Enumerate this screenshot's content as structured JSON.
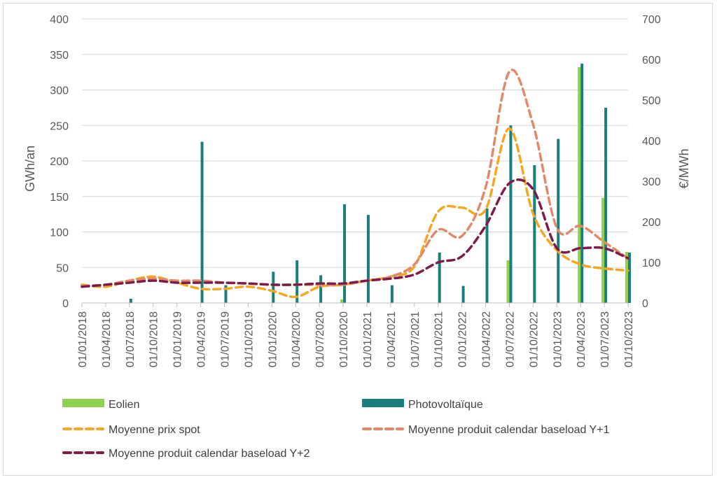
{
  "chart_data": {
    "type": "bar",
    "title": "",
    "categories": [
      "01/01/2018",
      "01/04/2018",
      "01/07/2018",
      "01/10/2018",
      "01/01/2019",
      "01/04/2019",
      "01/07/2019",
      "01/10/2019",
      "01/01/2020",
      "01/04/2020",
      "01/07/2020",
      "01/10/2020",
      "01/01/2021",
      "01/04/2021",
      "01/07/2021",
      "01/10/2021",
      "01/01/2022",
      "01/04/2022",
      "01/07/2022",
      "01/10/2022",
      "01/01/2023",
      "01/04/2023",
      "01/07/2023",
      "01/10/2023"
    ],
    "ylabel": "GWh/an",
    "y2label": "€/MWh",
    "ylim": [
      0,
      400
    ],
    "y2lim": [
      0,
      700
    ],
    "yticks": [
      "0",
      "50",
      "100",
      "150",
      "200",
      "250",
      "300",
      "350",
      "400"
    ],
    "y2ticks": [
      "0",
      "100",
      "200",
      "300",
      "400",
      "500",
      "600",
      "700"
    ],
    "grid": true,
    "legend_position": "bottom",
    "series": [
      {
        "name": "Eolien",
        "kind": "bar",
        "axis": "left",
        "color": "#92d050",
        "values": [
          0,
          0,
          0,
          0,
          0,
          0,
          0,
          0,
          0,
          0,
          0,
          5,
          0,
          0,
          0,
          0,
          0,
          0,
          60,
          0,
          0,
          332,
          148,
          72
        ]
      },
      {
        "name": "Photovoltaïque",
        "kind": "bar",
        "axis": "left",
        "color": "#1a7f7a",
        "values": [
          0,
          0,
          6,
          0,
          0,
          227,
          25,
          0,
          44,
          60,
          39,
          139,
          124,
          25,
          0,
          71,
          24,
          133,
          250,
          194,
          231,
          337,
          275,
          71
        ]
      },
      {
        "name": "Moyenne prix spot",
        "kind": "line",
        "axis": "right",
        "color": "#f5a623",
        "dash": "dashed",
        "values": [
          45,
          40,
          55,
          65,
          50,
          35,
          35,
          40,
          30,
          15,
          40,
          45,
          55,
          65,
          90,
          225,
          235,
          230,
          430,
          220,
          130,
          95,
          85,
          80
        ]
      },
      {
        "name": "Moyenne produit calendar baseload Y+1",
        "kind": "line",
        "axis": "right",
        "color": "#e0896b",
        "dash": "dashed",
        "values": [
          42,
          45,
          55,
          60,
          55,
          55,
          50,
          48,
          45,
          45,
          45,
          45,
          55,
          65,
          95,
          180,
          165,
          285,
          570,
          440,
          185,
          190,
          150,
          110
        ]
      },
      {
        "name": "Moyenne produit calendar baseload Y+2",
        "kind": "line",
        "axis": "right",
        "color": "#7b1c4a",
        "dash": "dashed",
        "values": [
          40,
          45,
          50,
          55,
          50,
          50,
          50,
          48,
          45,
          45,
          48,
          48,
          55,
          60,
          70,
          100,
          115,
          190,
          295,
          280,
          135,
          135,
          135,
          110
        ]
      }
    ]
  }
}
